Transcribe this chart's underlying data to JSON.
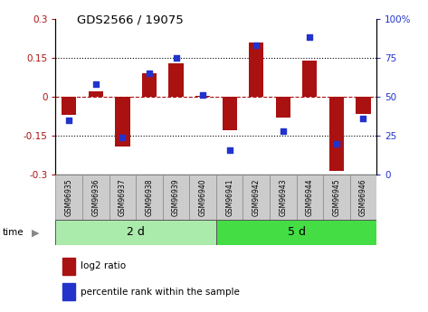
{
  "title": "GDS2566 / 19075",
  "samples": [
    "GSM96935",
    "GSM96936",
    "GSM96937",
    "GSM96938",
    "GSM96939",
    "GSM96940",
    "GSM96941",
    "GSM96942",
    "GSM96943",
    "GSM96944",
    "GSM96945",
    "GSM96946"
  ],
  "log2_ratio": [
    -0.07,
    0.02,
    -0.19,
    0.09,
    0.13,
    0.005,
    -0.13,
    0.21,
    -0.08,
    0.14,
    -0.285,
    -0.065
  ],
  "percentile": [
    35,
    58,
    24,
    65,
    75,
    51,
    16,
    83,
    28,
    88,
    20,
    36
  ],
  "bar_color": "#aa1111",
  "dot_color": "#2233cc",
  "ylim": [
    -0.3,
    0.3
  ],
  "yticks_left": [
    -0.3,
    -0.15,
    0,
    0.15,
    0.3
  ],
  "ytick_labels_left": [
    "-0.3",
    "-0.15",
    "0",
    "0.15",
    "0.3"
  ],
  "right_yticks": [
    0,
    25,
    50,
    75,
    100
  ],
  "right_ylim": [
    0,
    100
  ],
  "right_tick_labels": [
    "0",
    "25",
    "50",
    "75",
    "100%"
  ],
  "group1_label": "2 d",
  "group2_label": "5 d",
  "group1_count": 6,
  "group2_count": 6,
  "legend_bar_label": "log2 ratio",
  "legend_dot_label": "percentile rank within the sample",
  "bg_color": "#ffffff",
  "plot_bg_color": "#ffffff",
  "group1_color": "#aaeaaa",
  "group2_color": "#44dd44",
  "sample_box_color": "#cccccc",
  "sample_box_edge": "#888888"
}
